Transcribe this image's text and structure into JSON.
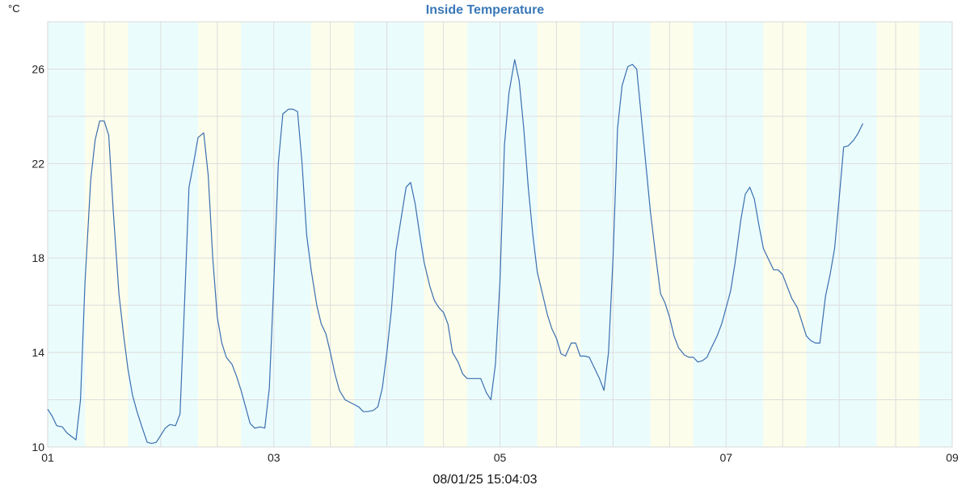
{
  "chart_data": {
    "type": "line",
    "title": "Inside Temperature",
    "ylabel": "°C",
    "xlabel": "",
    "footer": "08/01/25 15:04:03",
    "xlim": [
      1,
      9
    ],
    "ylim": [
      10,
      28
    ],
    "x_ticks": [
      {
        "value": 1,
        "label": "01"
      },
      {
        "value": 3,
        "label": "03"
      },
      {
        "value": 5,
        "label": "05"
      },
      {
        "value": 7,
        "label": "07"
      },
      {
        "value": 9,
        "label": "09"
      }
    ],
    "y_ticks": [
      10,
      14,
      18,
      22,
      26
    ],
    "grid": true,
    "colors": {
      "line": "#3a6fb0",
      "title": "#3a78b8",
      "grid": "#dddddd",
      "band_day": "#fdfdeb",
      "band_night": "#ebfcfc"
    },
    "day_bands": [
      [
        1.33,
        1.71
      ],
      [
        2.33,
        2.71
      ],
      [
        3.33,
        3.71
      ],
      [
        4.33,
        4.71
      ],
      [
        5.33,
        5.71
      ],
      [
        6.33,
        6.71
      ],
      [
        7.33,
        7.71
      ],
      [
        8.33,
        8.71
      ]
    ],
    "series": [
      {
        "name": "",
        "points": [
          [
            1.0,
            11.6
          ],
          [
            1.04,
            11.3
          ],
          [
            1.08,
            10.9
          ],
          [
            1.13,
            10.85
          ],
          [
            1.17,
            10.6
          ],
          [
            1.21,
            10.45
          ],
          [
            1.25,
            10.3
          ],
          [
            1.29,
            12.0
          ],
          [
            1.33,
            17.0
          ],
          [
            1.38,
            21.3
          ],
          [
            1.42,
            23.0
          ],
          [
            1.46,
            23.8
          ],
          [
            1.5,
            23.8
          ],
          [
            1.54,
            23.2
          ],
          [
            1.58,
            20.0
          ],
          [
            1.63,
            16.5
          ],
          [
            1.67,
            14.8
          ],
          [
            1.71,
            13.3
          ],
          [
            1.75,
            12.2
          ],
          [
            1.79,
            11.5
          ],
          [
            1.83,
            10.9
          ],
          [
            1.88,
            10.2
          ],
          [
            1.92,
            10.15
          ],
          [
            1.96,
            10.2
          ],
          [
            2.0,
            10.5
          ],
          [
            2.04,
            10.8
          ],
          [
            2.08,
            10.95
          ],
          [
            2.13,
            10.9
          ],
          [
            2.17,
            11.4
          ],
          [
            2.21,
            16.0
          ],
          [
            2.25,
            21.0
          ],
          [
            2.29,
            22.0
          ],
          [
            2.33,
            23.1
          ],
          [
            2.38,
            23.3
          ],
          [
            2.42,
            21.5
          ],
          [
            2.46,
            18.0
          ],
          [
            2.5,
            15.5
          ],
          [
            2.54,
            14.4
          ],
          [
            2.58,
            13.8
          ],
          [
            2.63,
            13.5
          ],
          [
            2.67,
            13.0
          ],
          [
            2.71,
            12.4
          ],
          [
            2.75,
            11.7
          ],
          [
            2.79,
            11.0
          ],
          [
            2.83,
            10.8
          ],
          [
            2.88,
            10.85
          ],
          [
            2.92,
            10.8
          ],
          [
            2.96,
            12.5
          ],
          [
            3.0,
            17.0
          ],
          [
            3.04,
            22.0
          ],
          [
            3.08,
            24.1
          ],
          [
            3.13,
            24.3
          ],
          [
            3.17,
            24.3
          ],
          [
            3.21,
            24.2
          ],
          [
            3.25,
            22.0
          ],
          [
            3.29,
            19.0
          ],
          [
            3.33,
            17.5
          ],
          [
            3.38,
            16.0
          ],
          [
            3.42,
            15.2
          ],
          [
            3.46,
            14.8
          ],
          [
            3.5,
            14.0
          ],
          [
            3.54,
            13.1
          ],
          [
            3.58,
            12.4
          ],
          [
            3.63,
            12.0
          ],
          [
            3.67,
            11.9
          ],
          [
            3.71,
            11.8
          ],
          [
            3.75,
            11.7
          ],
          [
            3.79,
            11.5
          ],
          [
            3.83,
            11.5
          ],
          [
            3.88,
            11.55
          ],
          [
            3.92,
            11.7
          ],
          [
            3.96,
            12.5
          ],
          [
            4.0,
            14.0
          ],
          [
            4.04,
            15.8
          ],
          [
            4.08,
            18.3
          ],
          [
            4.13,
            19.8
          ],
          [
            4.17,
            21.0
          ],
          [
            4.21,
            21.2
          ],
          [
            4.25,
            20.3
          ],
          [
            4.29,
            19.0
          ],
          [
            4.33,
            17.8
          ],
          [
            4.38,
            16.8
          ],
          [
            4.42,
            16.2
          ],
          [
            4.46,
            15.9
          ],
          [
            4.5,
            15.7
          ],
          [
            4.54,
            15.2
          ],
          [
            4.58,
            14.0
          ],
          [
            4.63,
            13.6
          ],
          [
            4.67,
            13.1
          ],
          [
            4.71,
            12.9
          ],
          [
            4.75,
            12.9
          ],
          [
            4.79,
            12.9
          ],
          [
            4.83,
            12.9
          ],
          [
            4.88,
            12.3
          ],
          [
            4.92,
            12.0
          ],
          [
            4.96,
            13.5
          ],
          [
            5.0,
            17.0
          ],
          [
            5.04,
            22.8
          ],
          [
            5.08,
            25.0
          ],
          [
            5.13,
            26.4
          ],
          [
            5.17,
            25.5
          ],
          [
            5.21,
            23.5
          ],
          [
            5.25,
            21.0
          ],
          [
            5.29,
            19.0
          ],
          [
            5.33,
            17.4
          ],
          [
            5.38,
            16.4
          ],
          [
            5.42,
            15.6
          ],
          [
            5.46,
            15.0
          ],
          [
            5.5,
            14.6
          ],
          [
            5.54,
            13.95
          ],
          [
            5.58,
            13.85
          ],
          [
            5.63,
            14.4
          ],
          [
            5.67,
            14.4
          ],
          [
            5.71,
            13.85
          ],
          [
            5.75,
            13.85
          ],
          [
            5.79,
            13.8
          ],
          [
            5.83,
            13.4
          ],
          [
            5.88,
            12.9
          ],
          [
            5.92,
            12.4
          ],
          [
            5.96,
            14.0
          ],
          [
            6.0,
            18.0
          ],
          [
            6.04,
            23.5
          ],
          [
            6.08,
            25.3
          ],
          [
            6.13,
            26.1
          ],
          [
            6.17,
            26.2
          ],
          [
            6.21,
            26.0
          ],
          [
            6.25,
            24.0
          ],
          [
            6.29,
            22.0
          ],
          [
            6.33,
            20.0
          ],
          [
            6.38,
            18.0
          ],
          [
            6.42,
            16.5
          ],
          [
            6.46,
            16.1
          ],
          [
            6.5,
            15.5
          ],
          [
            6.54,
            14.7
          ],
          [
            6.58,
            14.2
          ],
          [
            6.63,
            13.9
          ],
          [
            6.67,
            13.8
          ],
          [
            6.71,
            13.8
          ],
          [
            6.75,
            13.6
          ],
          [
            6.79,
            13.65
          ],
          [
            6.83,
            13.8
          ],
          [
            6.88,
            14.3
          ],
          [
            6.92,
            14.7
          ],
          [
            6.96,
            15.2
          ],
          [
            7.0,
            15.9
          ],
          [
            7.04,
            16.6
          ],
          [
            7.08,
            17.8
          ],
          [
            7.13,
            19.6
          ],
          [
            7.17,
            20.7
          ],
          [
            7.21,
            21.0
          ],
          [
            7.25,
            20.5
          ],
          [
            7.29,
            19.4
          ],
          [
            7.33,
            18.4
          ],
          [
            7.38,
            17.9
          ],
          [
            7.42,
            17.5
          ],
          [
            7.46,
            17.5
          ],
          [
            7.5,
            17.3
          ],
          [
            7.54,
            16.8
          ],
          [
            7.58,
            16.3
          ],
          [
            7.63,
            15.9
          ],
          [
            7.67,
            15.3
          ],
          [
            7.71,
            14.7
          ],
          [
            7.75,
            14.5
          ],
          [
            7.79,
            14.4
          ],
          [
            7.83,
            14.4
          ],
          [
            7.88,
            16.4
          ],
          [
            7.92,
            17.3
          ],
          [
            7.96,
            18.4
          ],
          [
            8.0,
            20.5
          ],
          [
            8.04,
            22.7
          ],
          [
            8.08,
            22.75
          ],
          [
            8.13,
            23.0
          ],
          [
            8.17,
            23.3
          ],
          [
            8.21,
            23.7
          ]
        ]
      }
    ]
  }
}
